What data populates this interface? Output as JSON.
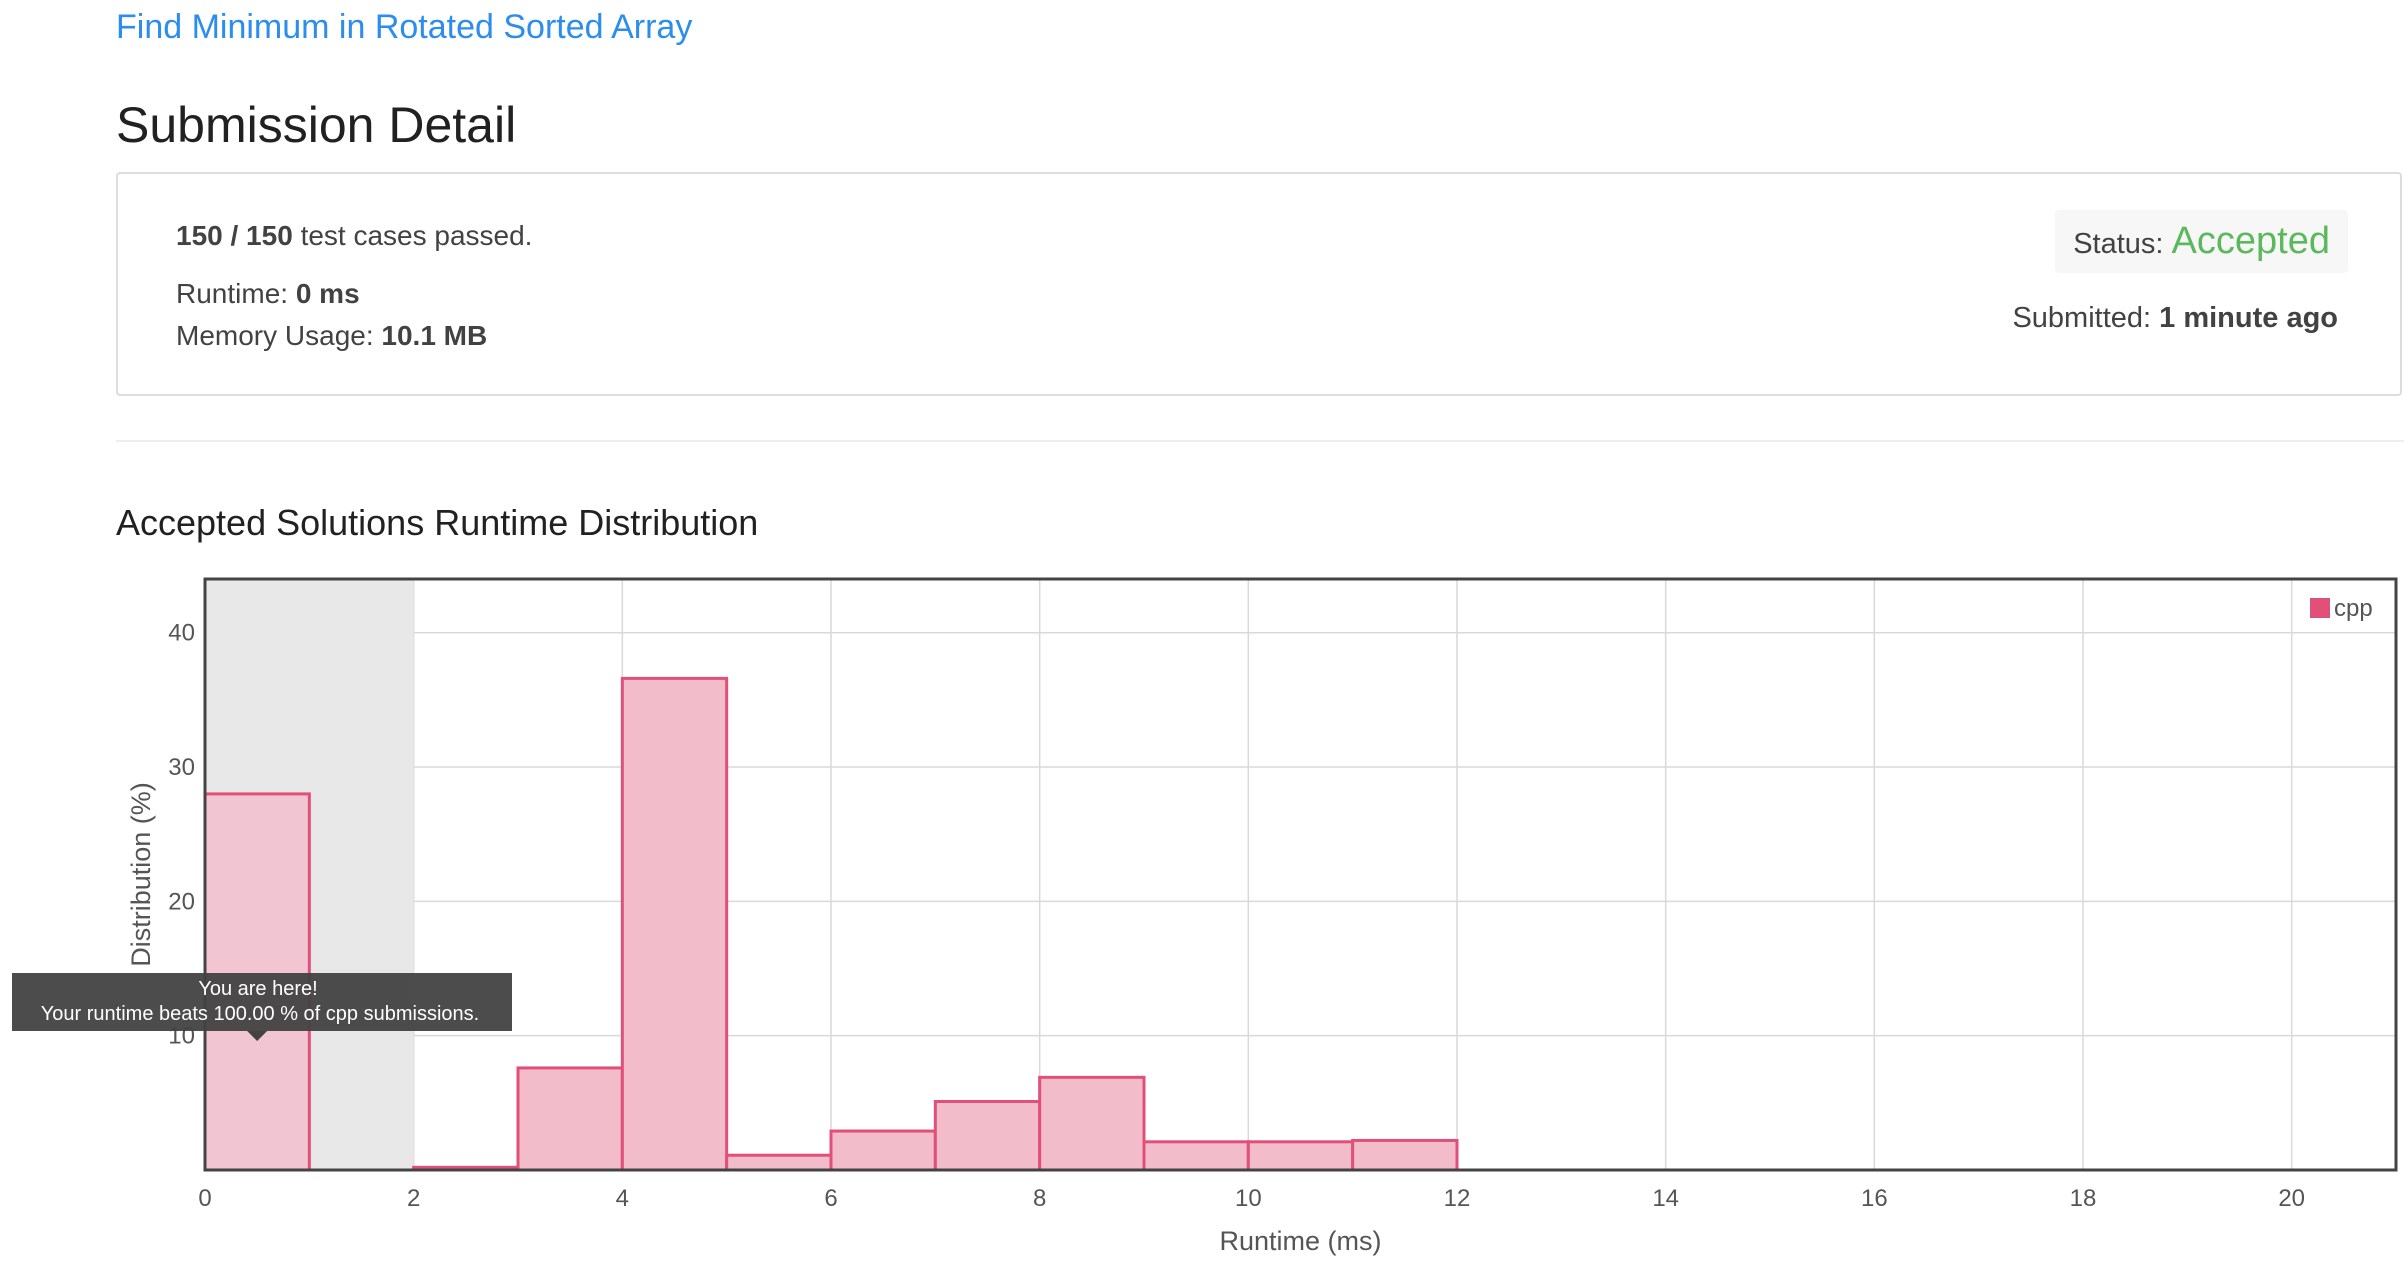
{
  "problem": {
    "title": "Find Minimum in Rotated Sorted Array"
  },
  "page": {
    "title": "Submission Detail"
  },
  "result": {
    "cases_passed": "150 / 150",
    "cases_label": "test cases passed.",
    "runtime_label": "Runtime:",
    "runtime_value": "0 ms",
    "memory_label": "Memory Usage:",
    "memory_value": "10.1 MB",
    "status_label": "Status:",
    "status_value": "Accepted",
    "submitted_label": "Submitted:",
    "submitted_value": "1 minute ago"
  },
  "section": {
    "title": "Accepted Solutions Runtime Distribution"
  },
  "tooltip": {
    "line1": "You are here!",
    "line2": "Your runtime beats 100.00 % of cpp submissions."
  },
  "colors": {
    "link": "#2b8ded",
    "accepted": "#5cb85c",
    "bar_fill": "#f3bccb",
    "bar_stroke": "#e0507a",
    "highlight_band": "#e8e8e8",
    "legend_swatch": "#e0507a"
  },
  "chart_data": {
    "type": "bar",
    "xlabel": "Runtime (ms)",
    "ylabel": "Distribution (%)",
    "xlim": [
      0,
      21
    ],
    "ylim": [
      0,
      44
    ],
    "x_ticks": [
      0,
      2,
      4,
      6,
      8,
      10,
      12,
      14,
      16,
      18,
      20
    ],
    "y_ticks": [
      10,
      20,
      30,
      40
    ],
    "grid": true,
    "legend_position": "top-right",
    "highlight_range": [
      0,
      2
    ],
    "series": [
      {
        "name": "cpp",
        "bins": [
          {
            "x0": 0,
            "x1": 1,
            "value": 28.0
          },
          {
            "x0": 2,
            "x1": 3,
            "value": 0.2
          },
          {
            "x0": 3,
            "x1": 4,
            "value": 7.6
          },
          {
            "x0": 4,
            "x1": 5,
            "value": 36.6
          },
          {
            "x0": 5,
            "x1": 6,
            "value": 1.1
          },
          {
            "x0": 6,
            "x1": 7,
            "value": 2.9
          },
          {
            "x0": 7,
            "x1": 8,
            "value": 5.1
          },
          {
            "x0": 8,
            "x1": 9,
            "value": 6.9
          },
          {
            "x0": 9,
            "x1": 10,
            "value": 2.1
          },
          {
            "x0": 10,
            "x1": 11,
            "value": 2.1
          },
          {
            "x0": 11,
            "x1": 12,
            "value": 2.2
          }
        ]
      }
    ]
  }
}
